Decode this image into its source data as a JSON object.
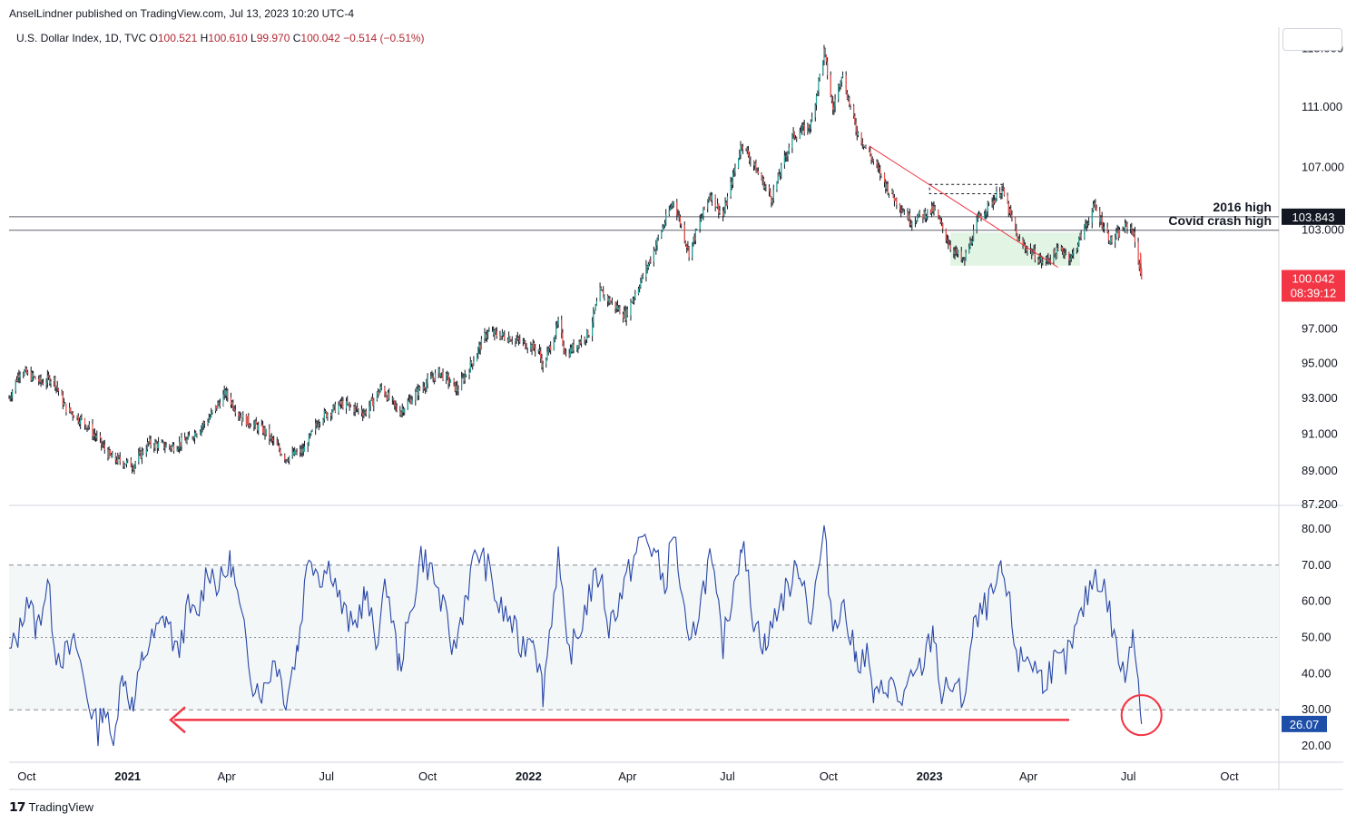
{
  "header": {
    "publisher": "AnselLindner published on TradingView.com, Jul 13, 2023 10:20 UTC-4",
    "symbol": "U.S. Dollar Index, 1D, TVC",
    "open_label": "O",
    "open": "100.521",
    "high_label": "H",
    "high": "100.610",
    "low_label": "L",
    "low": "99.970",
    "close_label": "C",
    "close": "100.042",
    "change": "−0.514 (−0.51%)"
  },
  "footer": {
    "brand": "TradingView"
  },
  "colors": {
    "bull": "#26a69a",
    "bear": "#ef5350",
    "candle": "#131722",
    "rsi": "#2846a8",
    "red": "#f23645",
    "grid": "#e6e8ee",
    "tag_red": "#f23645",
    "tag_blue": "#1e4fa8",
    "highlight": "#d6efd8"
  },
  "chart_data": [
    {
      "type": "candlestick",
      "title": "U.S. Dollar Index, 1D, TVC",
      "x_ticks": [
        "Oct",
        "2021",
        "Apr",
        "Jul",
        "Oct",
        "2022",
        "Apr",
        "Jul",
        "Oct",
        "2023",
        "Apr",
        "Jul",
        "Oct"
      ],
      "y_ticks": [
        "115.000",
        "111.000",
        "107.000",
        "103.000",
        "97.000",
        "95.000",
        "93.000",
        "91.000",
        "89.000",
        "87.200"
      ],
      "y_range": [
        87.2,
        116.5
      ],
      "log_scale": true,
      "price_path": [
        [
          "2020-09-15",
          93.0
        ],
        [
          "2020-09-25",
          94.6
        ],
        [
          "2020-10-15",
          93.9
        ],
        [
          "2020-10-25",
          94.2
        ],
        [
          "2020-11-05",
          92.5
        ],
        [
          "2020-11-25",
          91.5
        ],
        [
          "2020-12-17",
          89.7
        ],
        [
          "2021-01-06",
          89.3
        ],
        [
          "2021-01-20",
          90.5
        ],
        [
          "2021-02-10",
          90.3
        ],
        [
          "2021-02-25",
          90.7
        ],
        [
          "2021-03-15",
          91.8
        ],
        [
          "2021-03-31",
          93.3
        ],
        [
          "2021-04-15",
          91.9
        ],
        [
          "2021-05-05",
          91.2
        ],
        [
          "2021-05-25",
          89.7
        ],
        [
          "2021-06-10",
          90.1
        ],
        [
          "2021-06-25",
          91.9
        ],
        [
          "2021-07-15",
          92.7
        ],
        [
          "2021-08-05",
          92.2
        ],
        [
          "2021-08-20",
          93.6
        ],
        [
          "2021-09-05",
          92.2
        ],
        [
          "2021-09-25",
          93.6
        ],
        [
          "2021-10-12",
          94.5
        ],
        [
          "2021-10-28",
          93.5
        ],
        [
          "2021-11-10",
          95.0
        ],
        [
          "2021-11-24",
          96.8
        ],
        [
          "2021-12-15",
          96.5
        ],
        [
          "2022-01-10",
          95.8
        ],
        [
          "2022-01-14",
          94.8
        ],
        [
          "2022-01-28",
          97.3
        ],
        [
          "2022-02-04",
          95.5
        ],
        [
          "2022-02-25",
          96.8
        ],
        [
          "2022-03-07",
          99.2
        ],
        [
          "2022-03-30",
          97.8
        ],
        [
          "2022-04-20",
          100.9
        ],
        [
          "2022-05-13",
          104.9
        ],
        [
          "2022-05-27",
          101.6
        ],
        [
          "2022-06-15",
          105.3
        ],
        [
          "2022-06-27",
          103.9
        ],
        [
          "2022-07-14",
          108.6
        ],
        [
          "2022-08-10",
          105.0
        ],
        [
          "2022-08-29",
          109.0
        ],
        [
          "2022-09-15",
          109.8
        ],
        [
          "2022-09-27",
          114.8
        ],
        [
          "2022-10-05",
          110.8
        ],
        [
          "2022-10-13",
          113.3
        ],
        [
          "2022-10-26",
          109.5
        ],
        [
          "2022-11-10",
          107.5
        ],
        [
          "2022-11-25",
          105.5
        ],
        [
          "2022-12-15",
          103.6
        ],
        [
          "2023-01-05",
          104.3
        ],
        [
          "2023-01-20",
          102.0
        ],
        [
          "2023-02-01",
          101.0
        ],
        [
          "2023-02-15",
          103.8
        ],
        [
          "2023-03-08",
          105.6
        ],
        [
          "2023-03-23",
          102.3
        ],
        [
          "2023-04-05",
          101.6
        ],
        [
          "2023-04-14",
          101.0
        ],
        [
          "2023-05-01",
          101.8
        ],
        [
          "2023-05-10",
          101.3
        ],
        [
          "2023-05-31",
          104.5
        ],
        [
          "2023-06-15",
          102.3
        ],
        [
          "2023-06-30",
          103.3
        ],
        [
          "2023-07-05",
          103.0
        ],
        [
          "2023-07-13",
          100.042
        ]
      ],
      "levels": [
        {
          "label": "2016 high",
          "value": 103.843
        },
        {
          "label": "Covid crash high",
          "value": 102.99
        }
      ],
      "last_value": "100.042",
      "countdown": "08:39:12",
      "level_tag": "103.843"
    },
    {
      "type": "line",
      "series": [
        {
          "values": [
            [
              "2020-09-15",
              45
            ],
            [
              "2020-09-25",
              52
            ],
            [
              "2020-10-01",
              62
            ],
            [
              "2020-10-10",
              52
            ],
            [
              "2020-10-20",
              65
            ],
            [
              "2020-10-28",
              46
            ],
            [
              "2020-11-05",
              45
            ],
            [
              "2020-11-15",
              48
            ],
            [
              "2020-11-25",
              34
            ],
            [
              "2020-12-05",
              24
            ],
            [
              "2020-12-10",
              32
            ],
            [
              "2020-12-17",
              21
            ],
            [
              "2020-12-28",
              40
            ],
            [
              "2021-01-06",
              30
            ],
            [
              "2021-01-15",
              45
            ],
            [
              "2021-01-25",
              50
            ],
            [
              "2021-02-05",
              56
            ],
            [
              "2021-02-15",
              45
            ],
            [
              "2021-02-25",
              58
            ],
            [
              "2021-03-05",
              55
            ],
            [
              "2021-03-15",
              70
            ],
            [
              "2021-03-25",
              64
            ],
            [
              "2021-04-05",
              71
            ],
            [
              "2021-04-15",
              54
            ],
            [
              "2021-04-25",
              38
            ],
            [
              "2021-05-05",
              35
            ],
            [
              "2021-05-15",
              45
            ],
            [
              "2021-05-25",
              33
            ],
            [
              "2021-06-05",
              48
            ],
            [
              "2021-06-15",
              74
            ],
            [
              "2021-06-25",
              67
            ],
            [
              "2021-07-05",
              70
            ],
            [
              "2021-07-15",
              58
            ],
            [
              "2021-07-25",
              52
            ],
            [
              "2021-08-05",
              62
            ],
            [
              "2021-08-15",
              49
            ],
            [
              "2021-08-25",
              65
            ],
            [
              "2021-09-05",
              42
            ],
            [
              "2021-09-15",
              55
            ],
            [
              "2021-09-25",
              73
            ],
            [
              "2021-10-05",
              68
            ],
            [
              "2021-10-15",
              58
            ],
            [
              "2021-10-25",
              46
            ],
            [
              "2021-11-05",
              62
            ],
            [
              "2021-11-15",
              74
            ],
            [
              "2021-11-25",
              69
            ],
            [
              "2021-12-05",
              58
            ],
            [
              "2021-12-15",
              55
            ],
            [
              "2021-12-25",
              47
            ],
            [
              "2022-01-05",
              52
            ],
            [
              "2022-01-14",
              35
            ],
            [
              "2022-01-28",
              73
            ],
            [
              "2022-02-05",
              45
            ],
            [
              "2022-02-15",
              50
            ],
            [
              "2022-02-25",
              62
            ],
            [
              "2022-03-07",
              68
            ],
            [
              "2022-03-15",
              53
            ],
            [
              "2022-03-25",
              61
            ],
            [
              "2022-04-05",
              70
            ],
            [
              "2022-04-15",
              78
            ],
            [
              "2022-04-25",
              74
            ],
            [
              "2022-05-05",
              64
            ],
            [
              "2022-05-13",
              80
            ],
            [
              "2022-05-27",
              45
            ],
            [
              "2022-06-05",
              58
            ],
            [
              "2022-06-15",
              72
            ],
            [
              "2022-06-27",
              48
            ],
            [
              "2022-07-14",
              77
            ],
            [
              "2022-07-25",
              55
            ],
            [
              "2022-08-05",
              47
            ],
            [
              "2022-08-15",
              58
            ],
            [
              "2022-08-29",
              66
            ],
            [
              "2022-09-05",
              70
            ],
            [
              "2022-09-15",
              55
            ],
            [
              "2022-09-27",
              79
            ],
            [
              "2022-10-05",
              53
            ],
            [
              "2022-10-13",
              60
            ],
            [
              "2022-10-26",
              44
            ],
            [
              "2022-11-05",
              45
            ],
            [
              "2022-11-12",
              32
            ],
            [
              "2022-11-25",
              38
            ],
            [
              "2022-12-05",
              32
            ],
            [
              "2022-12-15",
              37
            ],
            [
              "2022-12-25",
              42
            ],
            [
              "2023-01-05",
              52
            ],
            [
              "2023-01-12",
              33
            ],
            [
              "2023-01-20",
              37
            ],
            [
              "2023-02-01",
              33
            ],
            [
              "2023-02-10",
              52
            ],
            [
              "2023-02-20",
              58
            ],
            [
              "2023-03-01",
              62
            ],
            [
              "2023-03-08",
              68
            ],
            [
              "2023-03-15",
              58
            ],
            [
              "2023-03-23",
              43
            ],
            [
              "2023-04-01",
              45
            ],
            [
              "2023-04-14",
              38
            ],
            [
              "2023-04-25",
              43
            ],
            [
              "2023-05-05",
              43
            ],
            [
              "2023-05-15",
              52
            ],
            [
              "2023-05-25",
              62
            ],
            [
              "2023-06-01",
              68
            ],
            [
              "2023-06-10",
              63
            ],
            [
              "2023-06-20",
              47
            ],
            [
              "2023-06-28",
              38
            ],
            [
              "2023-07-05",
              54
            ],
            [
              "2023-07-10",
              38
            ],
            [
              "2023-07-13",
              26.07
            ]
          ]
        }
      ],
      "y_ticks": [
        "80.00",
        "70.00",
        "60.00",
        "50.00",
        "40.00",
        "30.00",
        "20.00"
      ],
      "y_range": [
        15.5,
        86.5
      ],
      "band": [
        30,
        70
      ],
      "midline": 50,
      "last_value": "26.07"
    }
  ]
}
